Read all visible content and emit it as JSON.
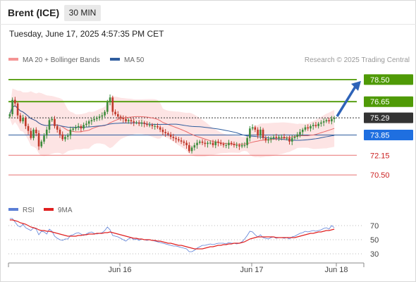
{
  "header": {
    "instrument": "Brent (ICE)",
    "timeframe": "30 MIN",
    "datetime": "Tuesday, June 17, 2025 4:57:35 PM CET"
  },
  "legend": {
    "bb_label": "MA 20 + Bollinger Bands",
    "ma50_label": "MA 50",
    "rsi_label": "RSI",
    "rsi_ma_label": "9MA"
  },
  "credit": "Research © 2025 Trading Central",
  "colors": {
    "resistance": "#4f9a06",
    "support": "#e87070",
    "ma50": "#2e5d9e",
    "last_price": "#333333",
    "rsi": "#5b7fd6",
    "rsi_ma": "#e02020",
    "candle_up": "#3d8c3d",
    "candle_down": "#c0392b",
    "bb_fill": "#fde4e4"
  },
  "chart_data": [
    {
      "type": "candlestick",
      "title": "Brent (ICE) 30 MIN",
      "x_ticks": [
        "Jun 16",
        "Jun 17",
        "Jun 18"
      ],
      "price_levels": [
        {
          "label": "78.50",
          "value": 78.5,
          "kind": "resistance"
        },
        {
          "label": "76.65",
          "value": 76.65,
          "kind": "resistance"
        },
        {
          "label": "75.29",
          "value": 75.29,
          "kind": "last_price"
        },
        {
          "label": "73.85",
          "value": 73.85,
          "kind": "ma50"
        },
        {
          "label": "72.15",
          "value": 72.15,
          "kind": "support"
        },
        {
          "label": "70.50",
          "value": 70.5,
          "kind": "support"
        }
      ],
      "close": [
        75.6,
        76.8,
        76.5,
        75.5,
        75.0,
        75.3,
        74.6,
        74.2,
        73.6,
        74.3,
        74.0,
        72.9,
        73.3,
        73.8,
        74.3,
        75.1,
        75.2,
        74.6,
        74.3,
        73.9,
        73.5,
        73.7,
        73.8,
        74.3,
        74.4,
        74.5,
        74.6,
        74.4,
        74.7,
        74.8,
        75.0,
        75.1,
        75.2,
        75.3,
        75.4,
        75.5,
        75.8,
        76.6,
        77.0,
        75.8,
        75.6,
        75.4,
        75.3,
        75.2,
        75.0,
        75.1,
        75.0,
        74.9,
        74.9,
        74.8,
        74.9,
        74.8,
        74.7,
        74.7,
        74.6,
        74.6,
        74.5,
        74.3,
        74.1,
        74.0,
        73.9,
        73.7,
        73.6,
        73.5,
        73.4,
        73.3,
        73.2,
        73.0,
        72.5,
        72.8,
        73.0,
        73.2,
        73.3,
        73.2,
        73.1,
        73.2,
        73.2,
        73.0,
        73.3,
        73.2,
        73.1,
        73.0,
        73.0,
        73.2,
        73.1,
        73.0,
        73.0,
        72.9,
        73.0,
        73.0,
        73.6,
        74.4,
        74.5,
        74.3,
        73.8,
        74.3,
        73.6,
        73.4,
        73.5,
        73.6,
        73.7,
        73.6,
        73.7,
        73.7,
        73.6,
        73.6,
        73.3,
        73.6,
        73.7,
        73.9,
        74.1,
        74.3,
        74.5,
        74.4,
        74.6,
        74.7,
        74.6,
        74.8,
        74.9,
        75.0,
        75.1,
        75.0,
        75.2,
        75.3
      ],
      "ylim": [
        68.5,
        79.5
      ]
    },
    {
      "type": "line",
      "name": "RSI",
      "y_ticks": [
        "70",
        "50",
        "30"
      ],
      "ylim": [
        20,
        85
      ],
      "series": [
        {
          "name": "RSI",
          "values": [
            80,
            80,
            75,
            70,
            68,
            72,
            67,
            65,
            63,
            67,
            65,
            57,
            62,
            61,
            58,
            65,
            62,
            55,
            52,
            50,
            49,
            51,
            51,
            56,
            57,
            59,
            60,
            58,
            56,
            58,
            60,
            61,
            59,
            58,
            59,
            60,
            63,
            68,
            64,
            56,
            55,
            54,
            52,
            50,
            48,
            51,
            53,
            50,
            51,
            49,
            51,
            50,
            49,
            50,
            49,
            48,
            47,
            46,
            45,
            44,
            43,
            42,
            41,
            41,
            40,
            39,
            38,
            37,
            33,
            33,
            35,
            38,
            40,
            42,
            42,
            43,
            44,
            43,
            44,
            45,
            45,
            45,
            44,
            46,
            45,
            45,
            44,
            45,
            47,
            51,
            56,
            62,
            61,
            57,
            54,
            57,
            53,
            52,
            51,
            53,
            54,
            52,
            53,
            53,
            52,
            53,
            51,
            54,
            55,
            57,
            59,
            60,
            62,
            61,
            62,
            63,
            62,
            63,
            64,
            66,
            67,
            65,
            70,
            67
          ]
        },
        {
          "name": "9MA",
          "values": [
            78,
            78,
            77,
            76,
            74,
            73,
            72,
            70,
            68,
            67,
            66,
            64,
            63,
            63,
            62,
            62,
            61,
            60,
            59,
            58,
            57,
            56,
            55,
            55,
            55,
            55,
            56,
            56,
            57,
            57,
            58,
            58,
            58,
            59,
            59,
            59,
            60,
            60,
            61,
            60,
            59,
            58,
            57,
            56,
            55,
            54,
            53,
            52,
            52,
            51,
            51,
            50,
            50,
            50,
            49,
            49,
            48,
            48,
            47,
            46,
            45,
            45,
            44,
            43,
            42,
            42,
            41,
            40,
            39,
            38,
            37,
            37,
            37,
            37,
            38,
            39,
            40,
            40,
            41,
            42,
            42,
            43,
            43,
            44,
            44,
            45,
            45,
            45,
            46,
            47,
            49,
            51,
            52,
            53,
            54,
            54,
            54,
            54,
            54,
            54,
            54,
            53,
            53,
            53,
            53,
            53,
            53,
            53,
            53,
            54,
            55,
            56,
            57,
            58,
            59,
            59,
            60,
            61,
            61,
            62,
            63,
            63,
            64,
            65
          ]
        }
      ]
    }
  ]
}
